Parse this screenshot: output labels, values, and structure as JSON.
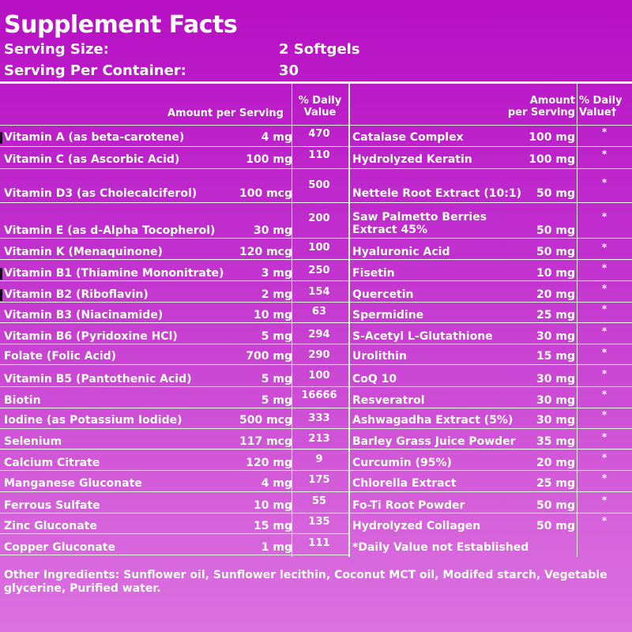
{
  "title": "Supplement Facts",
  "serving": {
    "size_label": "Serving Size:",
    "size_value": "2 Softgels",
    "container_label": "Serving Per Container:",
    "container_value": "30"
  },
  "headers": {
    "amount_left": "Amount per Serving",
    "dv_line1": "% Daily",
    "dv_line2": "Value",
    "amount_right_line1": "Amount",
    "amount_right_line2": "per Serving",
    "dv_right_line1": "% Daily",
    "dv_right_line2": "Value†"
  },
  "left_rows": [
    {
      "name": "Vitamin A (as beta-carotene)",
      "amount": "4 mg",
      "dv": "470"
    },
    {
      "name": "Vitamin C (as Ascorbic Acid)",
      "amount": "100 mg",
      "dv": "110"
    },
    {
      "name": "Vitamin D3 (as Cholecalciferol)",
      "amount": "100 mcg",
      "dv": "500"
    },
    {
      "name": "Vitamin E (as d-Alpha Tocopherol)",
      "amount": "30 mg",
      "dv": "200"
    },
    {
      "name": "Vitamin K (Menaquinone)",
      "amount": "120 mcg",
      "dv": "100"
    },
    {
      "name": "Vitamin B1 (Thiamine Mononitrate)",
      "amount": "3 mg",
      "dv": "250"
    },
    {
      "name": "Vitamin B2 (Riboflavin)",
      "amount": "2 mg",
      "dv": "154"
    },
    {
      "name": "Vitamin B3 (Niacinamide)",
      "amount": "10 mg",
      "dv": "63"
    },
    {
      "name": "Vitamin B6 (Pyridoxine HCl)",
      "amount": "5 mg",
      "dv": "294"
    },
    {
      "name": "Folate (Folic Acid)",
      "amount": "700 mg",
      "dv": "290"
    },
    {
      "name": "Vitamin B5 (Pantothenic Acid)",
      "amount": "5 mg",
      "dv": "100"
    },
    {
      "name": "Biotin",
      "amount": "5 mg",
      "dv": "16666"
    },
    {
      "name": "Iodine (as Potassium Iodide)",
      "amount": "500 mcg",
      "dv": "333"
    },
    {
      "name": "Selenium",
      "amount": "117 mcg",
      "dv": "213"
    },
    {
      "name": "Calcium Citrate",
      "amount": "120 mg",
      "dv": "9"
    },
    {
      "name": "Manganese Gluconate",
      "amount": "4 mg",
      "dv": "175"
    },
    {
      "name": "Ferrous Sulfate",
      "amount": "10 mg",
      "dv": "55"
    },
    {
      "name": "Zinc Gluconate",
      "amount": "15 mg",
      "dv": "135"
    },
    {
      "name": "Copper Gluconate",
      "amount": "1 mg",
      "dv": "111"
    }
  ],
  "right_rows": [
    {
      "name": "Catalase Complex",
      "amount": "100 mg",
      "dv": "*"
    },
    {
      "name": "Hydrolyzed Keratin",
      "amount": "100 mg",
      "dv": "*"
    },
    {
      "name": "Nettele Root Extract (10:1)",
      "amount": "50 mg",
      "dv": "*"
    },
    {
      "name": "Saw Palmetto Berries",
      "name2": "Extract 45%",
      "amount": "50 mg",
      "dv": "*"
    },
    {
      "name": "Hyaluronic Acid",
      "amount": "50 mg",
      "dv": "*"
    },
    {
      "name": "Fisetin",
      "amount": "10 mg",
      "dv": "*"
    },
    {
      "name": "Quercetin",
      "amount": "20 mg",
      "dv": "*"
    },
    {
      "name": "Spermidine",
      "amount": "25 mg",
      "dv": "*"
    },
    {
      "name": "S-Acetyl L-Glutathione",
      "amount": "30 mg",
      "dv": "*"
    },
    {
      "name": "Urolithin",
      "amount": "15 mg",
      "dv": "*"
    },
    {
      "name": "CoQ 10",
      "amount": "30 mg",
      "dv": "*"
    },
    {
      "name": "Resveratrol",
      "amount": "30 mg",
      "dv": "*"
    },
    {
      "name": "Ashwagadha Extract (5%)",
      "amount": "30 mg",
      "dv": "*"
    },
    {
      "name": "Barley Grass Juice Powder",
      "amount": "35 mg",
      "dv": "*"
    },
    {
      "name": "Curcumin (95%)",
      "amount": "20 mg",
      "dv": "*"
    },
    {
      "name": "Chlorella Extract",
      "amount": "25 mg",
      "dv": "*"
    },
    {
      "name": "Fo-Ti Root Powder",
      "amount": "50 mg",
      "dv": "*"
    },
    {
      "name": "Hydrolyzed Collagen",
      "amount": "50 mg",
      "dv": "*"
    }
  ],
  "footnote": "*Daily Value not Established",
  "other_ingredients": "Other Ingredients: Sunflower oil, Sunflower lecithin, Coconut MCT oil, Modifed starch, Vegetable glycerine, Purified water.",
  "colors": {
    "background_top": "#b70fc4",
    "background_bottom": "#dc72e1",
    "text": "#ffffff"
  }
}
